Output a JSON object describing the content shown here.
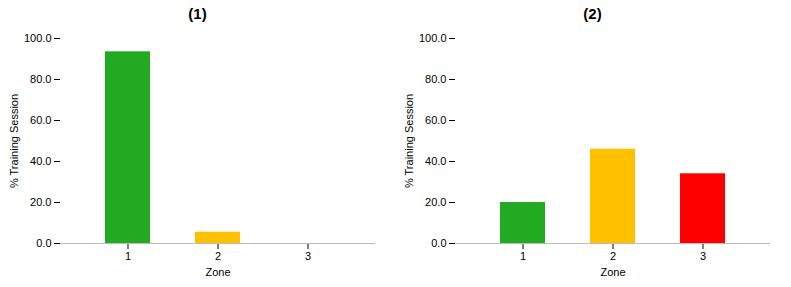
{
  "chart_data": [
    {
      "type": "bar",
      "title": "(1)",
      "categories": [
        "1",
        "2",
        "3"
      ],
      "values": [
        93.5,
        5.5,
        0.0
      ],
      "colors": [
        "#22aa22",
        "#FFC000",
        "#FF0000"
      ],
      "xlabel": "Zone",
      "ylabel": "% Training Session",
      "ylim": [
        0,
        100
      ],
      "yticks": [
        {
          "value": 0,
          "label": "0.0"
        },
        {
          "value": 20,
          "label": "20.0"
        },
        {
          "value": 40,
          "label": "40.0"
        },
        {
          "value": 60,
          "label": "60.0"
        },
        {
          "value": 80,
          "label": "80.0"
        },
        {
          "value": 100,
          "label": "100.0"
        }
      ],
      "grid": false
    },
    {
      "type": "bar",
      "title": "(2)",
      "categories": [
        "1",
        "2",
        "3"
      ],
      "values": [
        20.0,
        46.0,
        34.0
      ],
      "colors": [
        "#22aa22",
        "#FFC000",
        "#FF0000"
      ],
      "xlabel": "Zone",
      "ylabel": "% Training Session",
      "ylim": [
        0,
        100
      ],
      "yticks": [
        {
          "value": 0,
          "label": "0.0"
        },
        {
          "value": 20,
          "label": "20.0"
        },
        {
          "value": 40,
          "label": "40.0"
        },
        {
          "value": 60,
          "label": "60.0"
        },
        {
          "value": 80,
          "label": "80.0"
        },
        {
          "value": 100,
          "label": "100.0"
        }
      ],
      "grid": false
    }
  ]
}
